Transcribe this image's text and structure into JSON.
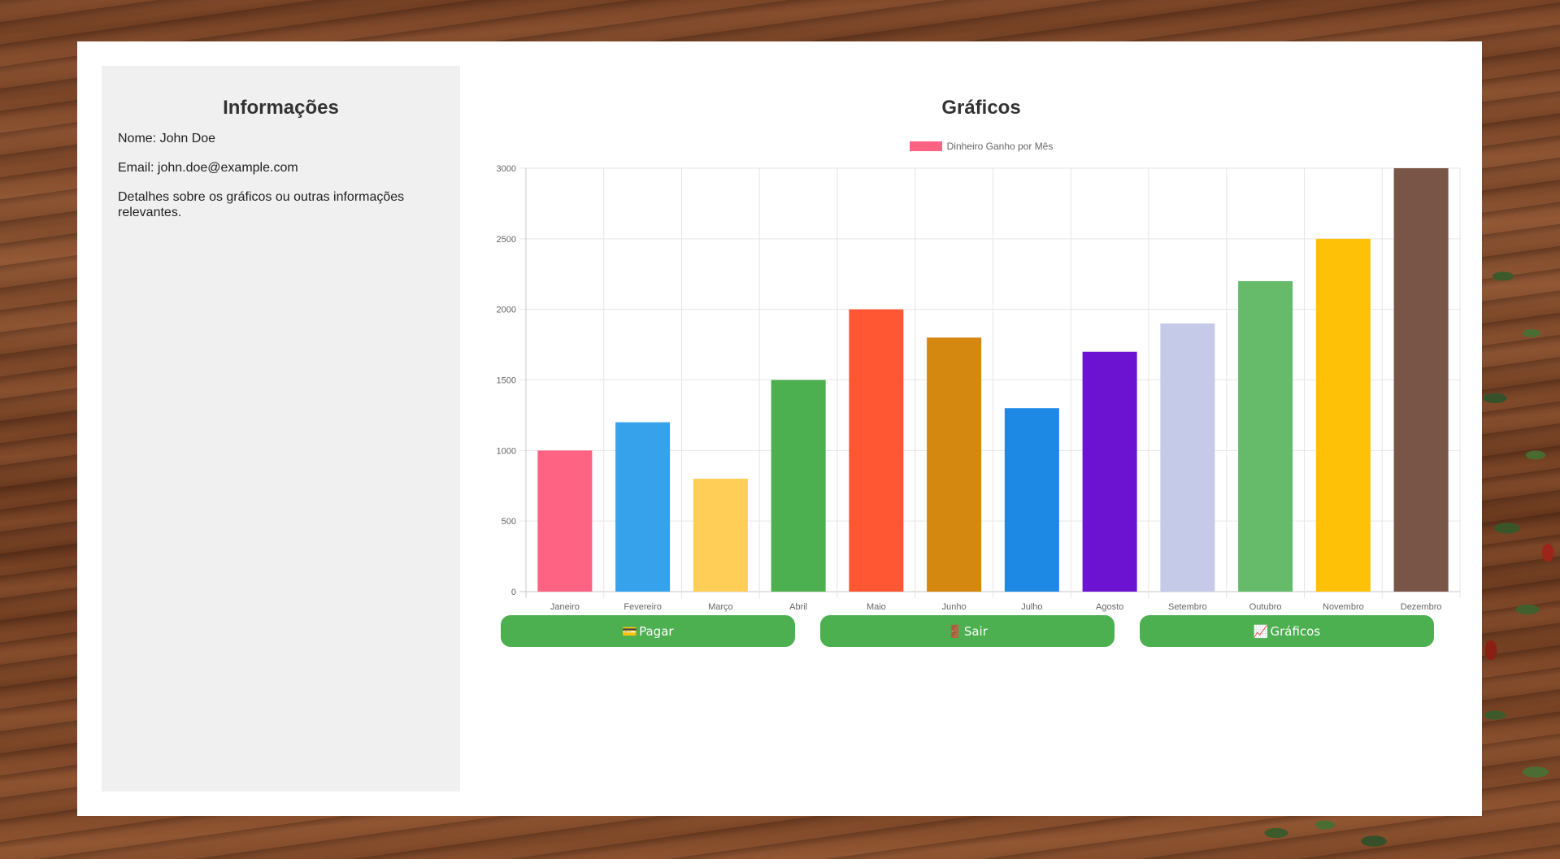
{
  "sidebar": {
    "title": "Informações",
    "name_line": "Nome: John Doe",
    "email_line": "Email: john.doe@example.com",
    "details": "Detalhes sobre os gráficos ou outras informações relevantes."
  },
  "main": {
    "title": "Gráficos"
  },
  "chart_data": {
    "type": "bar",
    "title": "",
    "legend": {
      "label": "Dinheiro Ganho por Mês",
      "color": "#ff6384",
      "placement": "top-center"
    },
    "categories": [
      "Janeiro",
      "Fevereiro",
      "Março",
      "Abril",
      "Maio",
      "Junho",
      "Julho",
      "Agosto",
      "Setembro",
      "Outubro",
      "Novembro",
      "Dezembro"
    ],
    "values": [
      1000,
      1200,
      800,
      1500,
      2000,
      1800,
      1300,
      1700,
      1900,
      2200,
      2500,
      3000
    ],
    "colors": [
      "#ff6384",
      "#36a2eb",
      "#ffce56",
      "#4caf50",
      "#ff5733",
      "#d4880f",
      "#1e88e5",
      "#6c13d1",
      "#c5cae9",
      "#66bb6a",
      "#ffc107",
      "#795548"
    ],
    "ylim": [
      0,
      3000
    ],
    "yticks": [
      0,
      500,
      1000,
      1500,
      2000,
      2500,
      3000
    ],
    "grid": true,
    "xlabel": "",
    "ylabel": ""
  },
  "buttons": [
    {
      "icon": "💳",
      "label": "Pagar"
    },
    {
      "icon": "🚪",
      "label": "Sair"
    },
    {
      "icon": "📈",
      "label": "Gráficos"
    }
  ]
}
